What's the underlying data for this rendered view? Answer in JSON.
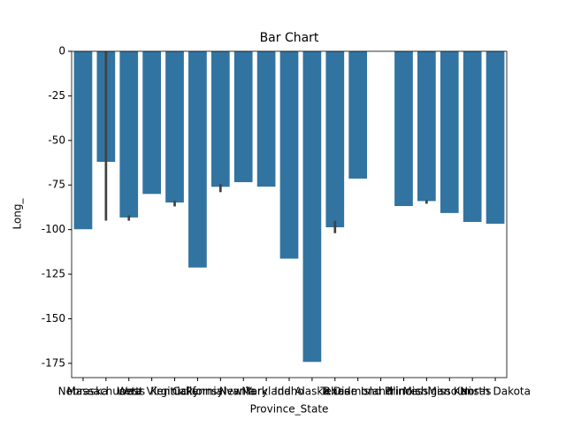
{
  "chart_data": {
    "type": "bar",
    "title": "Bar Chart",
    "x_label": "Province_State",
    "y_label": "Long_",
    "categories": [
      "Nebraska",
      "Massachusetts",
      "Iowa",
      "West Virginia",
      "Kentucky",
      "California",
      "Pennsylvania",
      "New York",
      "Maryland",
      "Idaho",
      "Alaska",
      "Texas",
      "Rhode Island",
      "Diamond Princess",
      "Illinois",
      "Michigan",
      "Missouri",
      "Kansas",
      "North Dakota"
    ],
    "values": [
      -99.8,
      -62,
      -93.2,
      -80,
      -84.8,
      -121.3,
      -76,
      -73.4,
      -75.9,
      -116.3,
      -174.2,
      -98.7,
      -71.4,
      null,
      -86.8,
      -84,
      -90.7,
      -95.7,
      -96.7
    ],
    "ci": [
      null,
      [
        0,
        -95
      ],
      [
        -92,
        -95
      ],
      null,
      [
        -84,
        -87
      ],
      null,
      [
        -74.5,
        -79
      ],
      null,
      null,
      null,
      null,
      [
        -95,
        -102
      ],
      null,
      null,
      null,
      [
        -83.5,
        -85.5
      ],
      null,
      null,
      null
    ],
    "color": "#3274a1",
    "error_color": "#424242",
    "ylim": [
      -183,
      0
    ],
    "yticks": [
      0,
      -25,
      -50,
      -75,
      -100,
      -125,
      -150,
      -175
    ]
  }
}
